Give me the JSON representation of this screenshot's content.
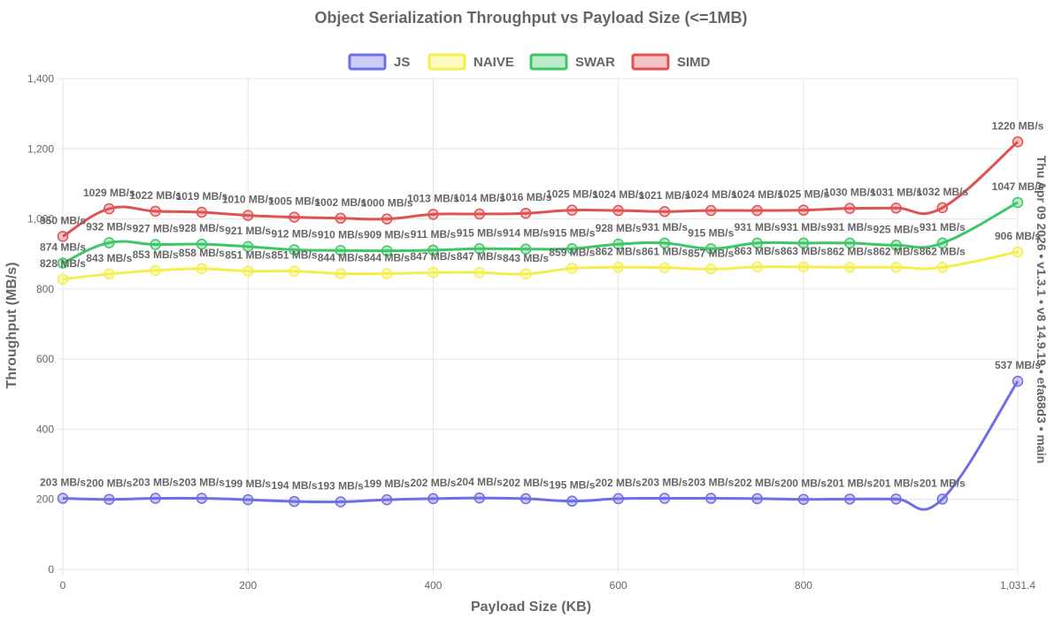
{
  "chart_data": {
    "type": "line",
    "title": "Object Serialization Throughput vs Payload Size (<=1MB)",
    "xlabel": "Payload Size (KB)",
    "ylabel": "Throughput (MB/s)",
    "side_note": "Thu Apr 09 2026 • v1.3.1 • v8 14.9.19 • efa68d3 • main",
    "xlim": [
      0,
      1031.4
    ],
    "ylim": [
      0,
      1400
    ],
    "x_ticks": [
      0,
      200,
      400,
      600,
      800,
      1031.4
    ],
    "x_tick_labels": [
      "0",
      "200",
      "400",
      "600",
      "800",
      "1,031.4"
    ],
    "y_ticks": [
      0,
      200,
      400,
      600,
      800,
      1000,
      1200,
      1400
    ],
    "y_tick_labels": [
      "0",
      "200",
      "400",
      "600",
      "800",
      "1,000",
      "1,200",
      "1,400"
    ],
    "x": [
      0,
      50,
      100,
      150,
      200,
      250,
      300,
      350,
      400,
      450,
      500,
      550,
      600,
      650,
      700,
      750,
      800,
      850,
      900,
      950,
      1031.4
    ],
    "series": [
      {
        "name": "JS",
        "color": "#6e6ee6",
        "fill": "rgba(110,110,230,0.35)",
        "values": [
          203,
          200,
          203,
          203,
          199,
          194,
          193,
          199,
          202,
          204,
          202,
          195,
          202,
          203,
          203,
          202,
          200,
          201,
          201,
          201,
          537
        ],
        "labels": [
          "203 MB/s",
          "200 MB/s",
          "203 MB/s",
          "203 MB/s",
          "199 MB/s",
          "194 MB/s",
          "193 MB/s",
          "199 MB/s",
          "202 MB/s",
          "204 MB/s",
          "202 MB/s",
          "195 MB/s",
          "202 MB/s",
          "203 MB/s",
          "203 MB/s",
          "202 MB/s",
          "200 MB/s",
          "201 MB/s",
          "201 MB/s",
          "201 MB/s",
          "537 MB/s"
        ]
      },
      {
        "name": "NAIVE",
        "color": "#f5ef4d",
        "fill": "rgba(245,239,77,0.35)",
        "values": [
          828,
          843,
          853,
          858,
          851,
          851,
          844,
          844,
          847,
          847,
          843,
          859,
          862,
          861,
          857,
          863,
          863,
          862,
          862,
          862,
          906
        ],
        "labels": [
          "828 MB/s",
          "843 MB/s",
          "853 MB/s",
          "858 MB/s",
          "851 MB/s",
          "851 MB/s",
          "844 MB/s",
          "844 MB/s",
          "847 MB/s",
          "847 MB/s",
          "843 MB/s",
          "859 MB/s",
          "862 MB/s",
          "861 MB/s",
          "857 MB/s",
          "863 MB/s",
          "863 MB/s",
          "862 MB/s",
          "862 MB/s",
          "862 MB/s",
          "906 MB/s"
        ]
      },
      {
        "name": "SWAR",
        "color": "#3ec766",
        "fill": "rgba(62,199,102,0.35)",
        "values": [
          874,
          932,
          927,
          928,
          921,
          912,
          910,
          909,
          911,
          915,
          914,
          915,
          928,
          931,
          915,
          931,
          931,
          931,
          925,
          931,
          1047
        ],
        "labels": [
          "874 MB/s",
          "932 MB/s",
          "927 MB/s",
          "928 MB/s",
          "921 MB/s",
          "912 MB/s",
          "910 MB/s",
          "909 MB/s",
          "911 MB/s",
          "915 MB/s",
          "914 MB/s",
          "915 MB/s",
          "928 MB/s",
          "931 MB/s",
          "915 MB/s",
          "931 MB/s",
          "931 MB/s",
          "931 MB/s",
          "925 MB/s",
          "931 MB/s",
          "1047 MB/s"
        ]
      },
      {
        "name": "SIMD",
        "color": "#e05252",
        "fill": "rgba(224,82,82,0.35)",
        "values": [
          950,
          1029,
          1022,
          1019,
          1010,
          1005,
          1002,
          1000,
          1013,
          1014,
          1016,
          1025,
          1024,
          1021,
          1024,
          1024,
          1025,
          1030,
          1031,
          1032,
          1220
        ],
        "labels": [
          "950 MB/s",
          "1029 MB/s",
          "1022 MB/s",
          "1019 MB/s",
          "1010 MB/s",
          "1005 MB/s",
          "1002 MB/s",
          "1000 MB/s",
          "1013 MB/s",
          "1014 MB/s",
          "1016 MB/s",
          "1025 MB/s",
          "1024 MB/s",
          "1021 MB/s",
          "1024 MB/s",
          "1024 MB/s",
          "1025 MB/s",
          "1030 MB/s",
          "1031 MB/s",
          "1032 MB/s",
          "1220 MB/s"
        ]
      }
    ],
    "legend_position": "top"
  }
}
